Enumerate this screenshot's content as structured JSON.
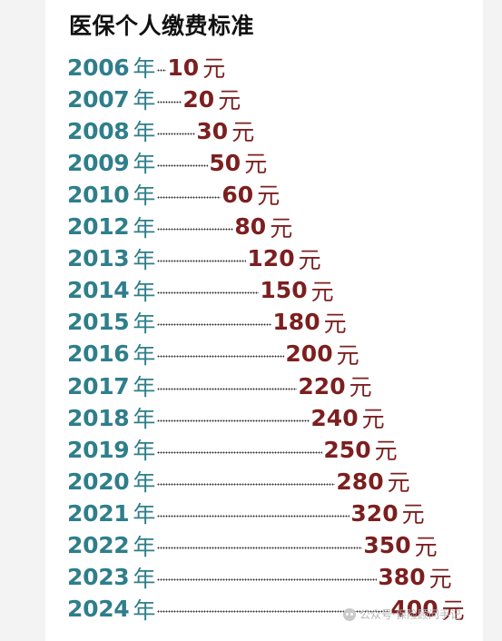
{
  "title": "医保个人缴费标准",
  "year_unit": "年",
  "amount_unit": "元",
  "rows": [
    {
      "year": "2006",
      "amount": "10"
    },
    {
      "year": "2007",
      "amount": "20"
    },
    {
      "year": "2008",
      "amount": "30"
    },
    {
      "year": "2009",
      "amount": "50"
    },
    {
      "year": "2010",
      "amount": "60"
    },
    {
      "year": "2012",
      "amount": "80"
    },
    {
      "year": "2013",
      "amount": "120"
    },
    {
      "year": "2014",
      "amount": "150"
    },
    {
      "year": "2015",
      "amount": "180"
    },
    {
      "year": "2016",
      "amount": "200"
    },
    {
      "year": "2017",
      "amount": "220"
    },
    {
      "year": "2018",
      "amount": "240"
    },
    {
      "year": "2019",
      "amount": "250"
    },
    {
      "year": "2020",
      "amount": "280"
    },
    {
      "year": "2021",
      "amount": "320"
    },
    {
      "year": "2022",
      "amount": "350"
    },
    {
      "year": "2023",
      "amount": "380"
    },
    {
      "year": "2024",
      "amount": "400"
    }
  ],
  "watermark": {
    "icon": "wechat-icon",
    "text": "公众号·保险顾问手记"
  }
}
